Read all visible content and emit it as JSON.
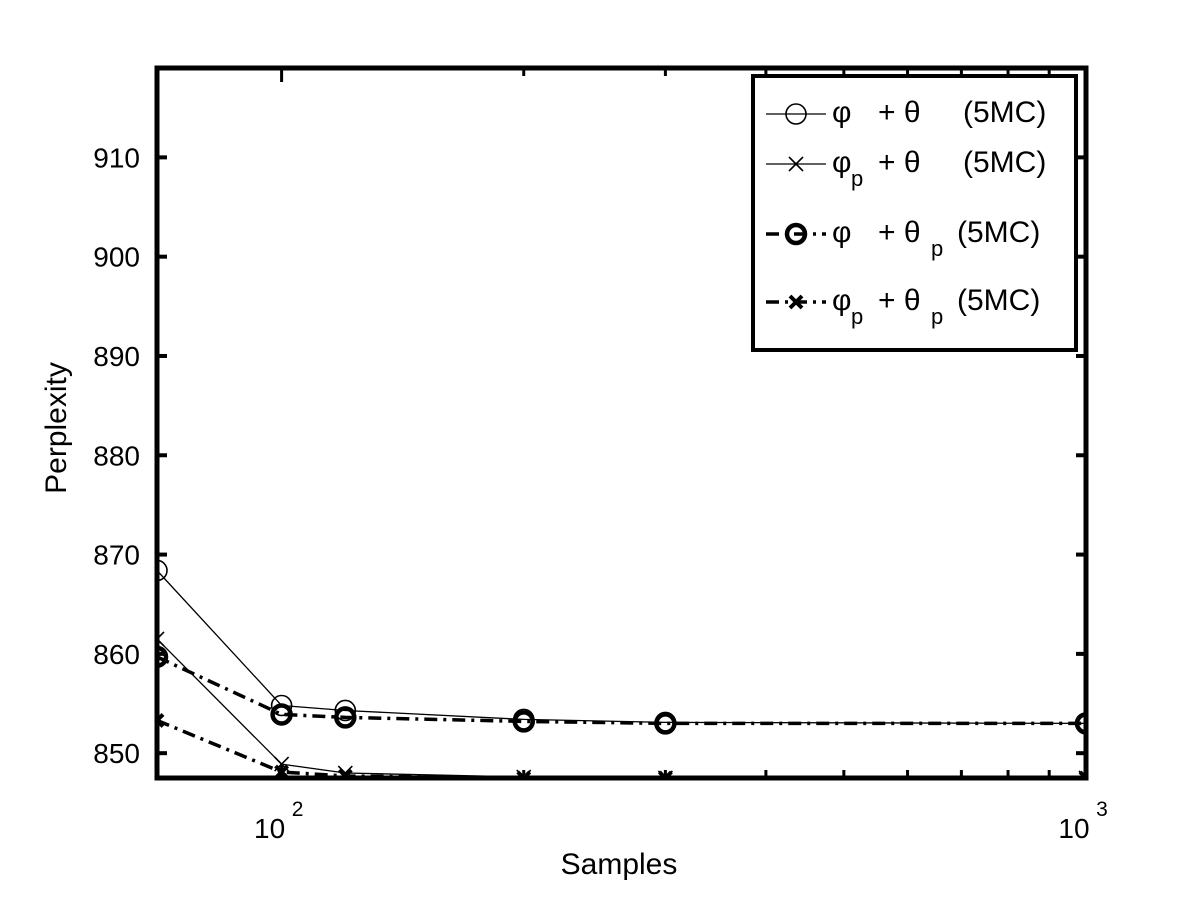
{
  "chart_data": {
    "type": "line",
    "xlabel": "Samples",
    "ylabel": "Perplexity",
    "x_scale": "log",
    "xlim": [
      70,
      1000
    ],
    "ylim": [
      847.5,
      919
    ],
    "x_ticks": [
      {
        "value": 100,
        "base": "10",
        "exp": "2"
      },
      {
        "value": 1000,
        "base": "10",
        "exp": "3"
      }
    ],
    "y_ticks": [
      850,
      860,
      870,
      880,
      890,
      900,
      910
    ],
    "grid": false,
    "legend_position": "top-right",
    "series": [
      {
        "legend": {
          "a": "φ",
          "a_sub": "",
          "b": "+ θ",
          "b_sub": "",
          "suffix": "(5MC)"
        },
        "marker": "circle",
        "line": "solid",
        "weight": "thin",
        "x": [
          70,
          100,
          120,
          200,
          300,
          1000
        ],
        "y": [
          868.4,
          854.8,
          854.3,
          853.4,
          853.1,
          853.0
        ]
      },
      {
        "legend": {
          "a": "φ",
          "a_sub": "p",
          "b": "+ θ",
          "b_sub": "",
          "suffix": "(5MC)"
        },
        "marker": "x",
        "line": "solid",
        "weight": "thin",
        "x": [
          70,
          100,
          120,
          200,
          300,
          1000
        ],
        "y": [
          861.5,
          848.9,
          848.0,
          847.6,
          847.5,
          847.5
        ]
      },
      {
        "legend": {
          "a": "φ",
          "a_sub": "",
          "b": "+ θ",
          "b_sub": "p",
          "suffix": "(5MC)"
        },
        "marker": "circle",
        "line": "dashdot",
        "weight": "bold",
        "x": [
          70,
          100,
          120,
          200,
          300,
          1000
        ],
        "y": [
          859.7,
          853.9,
          853.6,
          853.2,
          853.0,
          853.0
        ]
      },
      {
        "legend": {
          "a": "φ",
          "a_sub": "p",
          "b": "+ θ",
          "b_sub": "p",
          "suffix": "(5MC)"
        },
        "marker": "x",
        "line": "dashdot",
        "weight": "bold",
        "x": [
          70,
          100,
          120,
          200,
          300,
          1000
        ],
        "y": [
          853.3,
          848.1,
          847.7,
          847.5,
          847.5,
          847.5
        ]
      }
    ]
  }
}
